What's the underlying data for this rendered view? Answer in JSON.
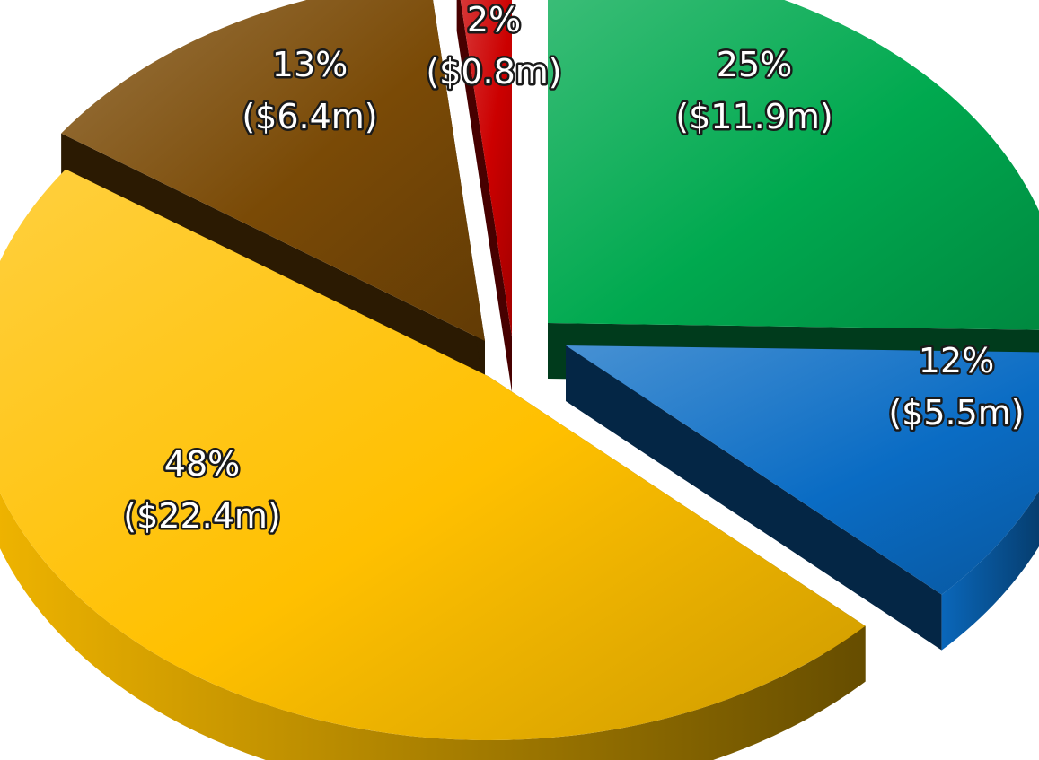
{
  "chart_data": {
    "type": "pie",
    "title": "",
    "slices": [
      {
        "label": "25%",
        "value": 11.9,
        "percent": 25,
        "display": "($11.9m)",
        "color": "#00a94f"
      },
      {
        "label": "12%",
        "value": 5.5,
        "percent": 12,
        "display": "($5.5m)",
        "color": "#0a6cc4"
      },
      {
        "label": "48%",
        "value": 22.4,
        "percent": 48,
        "display": "($22.4m)",
        "color": "#ffc000"
      },
      {
        "label": "13%",
        "value": 6.4,
        "percent": 13,
        "display": "($6.4m)",
        "color": "#7a4a06"
      },
      {
        "label": "2%",
        "value": 0.8,
        "percent": 2,
        "display": "($0.8m)",
        "color": "#cc0000"
      }
    ]
  }
}
